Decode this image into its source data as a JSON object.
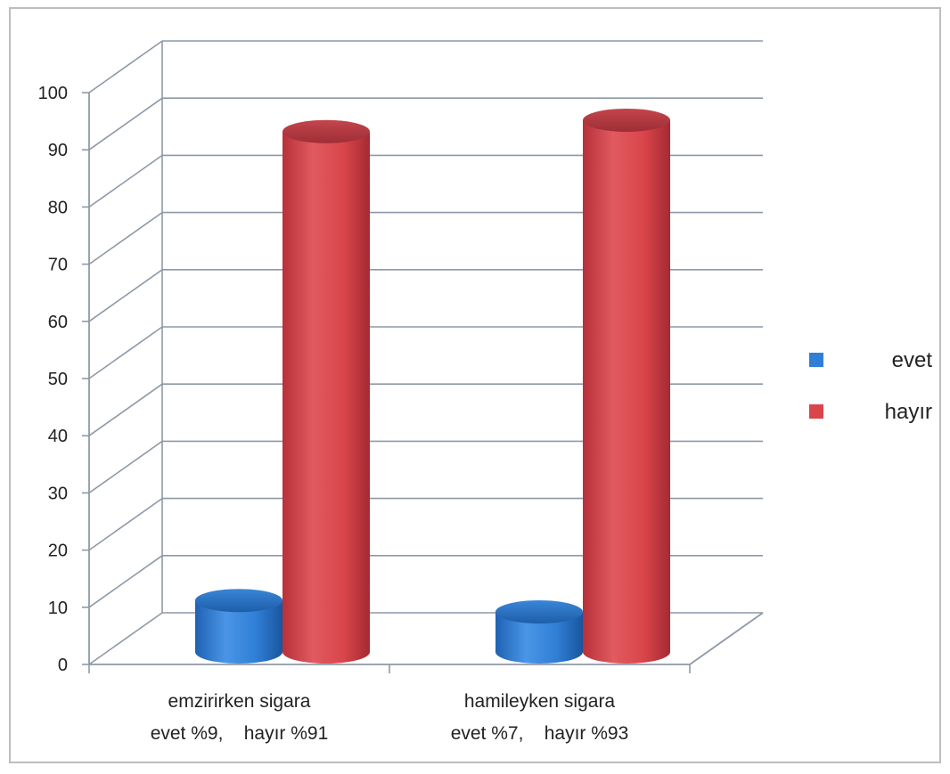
{
  "chart_data": {
    "type": "bar",
    "style": "3d-cylinder",
    "categories": [
      [
        "emzirirken sigara",
        "evet %9,    hayır %91"
      ],
      [
        "hamileyken sigara",
        "evet %7,    hayır %93"
      ]
    ],
    "series": [
      {
        "name": "evet",
        "color": "#2f7fd6",
        "values": [
          9,
          7
        ]
      },
      {
        "name": "hayır",
        "color": "#d9454a",
        "values": [
          91,
          93
        ]
      }
    ],
    "ylim": [
      0,
      100
    ],
    "yticks": [
      "0",
      "10",
      "20",
      "30",
      "40",
      "50",
      "60",
      "70",
      "80",
      "90",
      "100"
    ],
    "grid": true,
    "legend": "right"
  }
}
